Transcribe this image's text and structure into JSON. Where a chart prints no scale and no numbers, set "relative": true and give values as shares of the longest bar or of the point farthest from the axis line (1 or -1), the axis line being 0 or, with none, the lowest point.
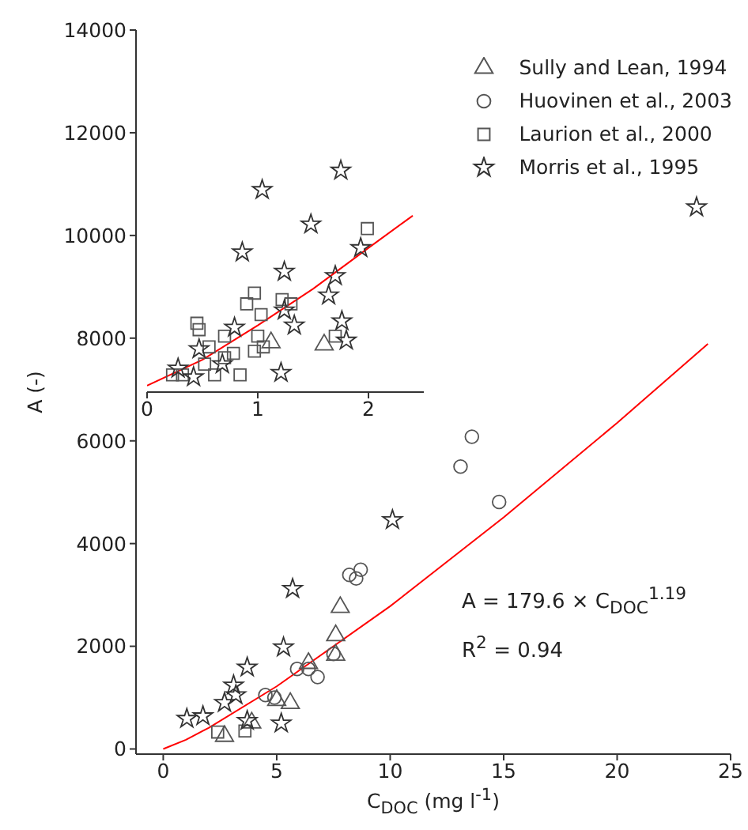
{
  "chart_data": [
    {
      "type": "scatter",
      "xlabel": "C$_{DOC}$ (mg l$^{-1}$)",
      "ylabel": "A (-)",
      "xlim": [
        -1.2,
        25
      ],
      "ylim": [
        -100,
        14000
      ],
      "xticks": [
        0,
        5,
        10,
        15,
        20,
        25
      ],
      "yticks": [
        0,
        2000,
        4000,
        6000,
        8000,
        10000,
        12000,
        14000
      ],
      "legend": "top right",
      "annotations": [
        "A = 179.6 × C$_{DOC}$$^{1.19}$",
        "R$^{2}$ = 0.94"
      ],
      "series": [
        {
          "name": "Sully and Lean, 1994",
          "color": "#555555",
          "marker": "triangle",
          "x": [
            7.8,
            7.6,
            7.6,
            6.4,
            5.6,
            5.0,
            3.9,
            2.7
          ],
          "values": [
            2760,
            2210,
            1830,
            1670,
            890,
            950,
            510,
            250
          ]
        },
        {
          "name": "Huovinen et al., 2003",
          "color": "#555555",
          "marker": "circle",
          "x": [
            13.6,
            13.1,
            14.8,
            8.7,
            8.2,
            8.5,
            7.5,
            6.8,
            6.4,
            5.9,
            4.9,
            4.5
          ],
          "values": [
            6080,
            5500,
            4810,
            3490,
            3390,
            3320,
            1850,
            1400,
            1560,
            1560,
            1000,
            1050
          ]
        },
        {
          "name": "Laurion et al., 2000",
          "color": "#555555",
          "marker": "square",
          "x": [
            3.6,
            2.4
          ],
          "values": [
            350,
            330
          ]
        },
        {
          "name": "Morris et al., 1995",
          "color": "#333333",
          "marker": "star",
          "x": [
            23.5,
            10.1,
            5.7,
            5.3,
            3.7,
            3.1,
            3.2,
            2.7,
            5.2,
            3.7,
            1.75,
            1.04
          ],
          "values": [
            10550,
            4460,
            3120,
            1980,
            1590,
            1240,
            1050,
            900,
            500,
            550,
            640,
            590
          ]
        },
        {
          "type": "line",
          "color": "#ff0000",
          "x": [
            0,
            1,
            2,
            5,
            10,
            15,
            20,
            24
          ],
          "values": [
            0,
            180,
            410,
            1220,
            2780,
            4510,
            6350,
            7890
          ]
        }
      ]
    },
    {
      "type": "scatter",
      "relative": true,
      "xlim": [
        0,
        2.5
      ],
      "xticks": [
        0,
        1,
        2
      ],
      "tick_labels": "x",
      "series": [
        {
          "color": "#555555",
          "marker": "triangle",
          "x": [
            1.6,
            1.12
          ],
          "values": [
            0.19,
            0.2
          ]
        },
        {
          "color": "#555555",
          "marker": "square",
          "x": [
            1.99,
            0.97,
            0.9,
            1.03,
            1.22,
            1.3,
            1.0,
            0.97,
            1.05,
            1.7,
            0.45,
            0.47,
            0.56,
            0.7,
            0.78,
            0.84,
            0.61,
            0.32,
            0.23,
            0.52,
            0.7
          ],
          "values": [
            0.73,
            0.43,
            0.38,
            0.33,
            0.4,
            0.38,
            0.23,
            0.16,
            0.18,
            0.23,
            0.29,
            0.26,
            0.18,
            0.23,
            0.15,
            0.05,
            0.05,
            0.05,
            0.05,
            0.1,
            0.13
          ]
        },
        {
          "color": "#333333",
          "marker": "star",
          "x": [
            1.75,
            1.04,
            1.48,
            0.86,
            1.93,
            1.24,
            1.7,
            1.64,
            1.24,
            1.33,
            1.76,
            1.8,
            0.79,
            1.21,
            0.47,
            0.28,
            0.42,
            0.68
          ],
          "values": [
            1,
            0.91,
            0.75,
            0.62,
            0.64,
            0.53,
            0.51,
            0.42,
            0.35,
            0.28,
            0.3,
            0.21,
            0.27,
            0.06,
            0.17,
            0.08,
            0.04,
            0.1
          ]
        },
        {
          "type": "line",
          "color": "#ff0000",
          "x": [
            0,
            0.5,
            1,
            1.5,
            2,
            2.4
          ],
          "values": [
            0,
            0.12,
            0.28,
            0.45,
            0.64,
            0.79
          ]
        }
      ]
    }
  ]
}
